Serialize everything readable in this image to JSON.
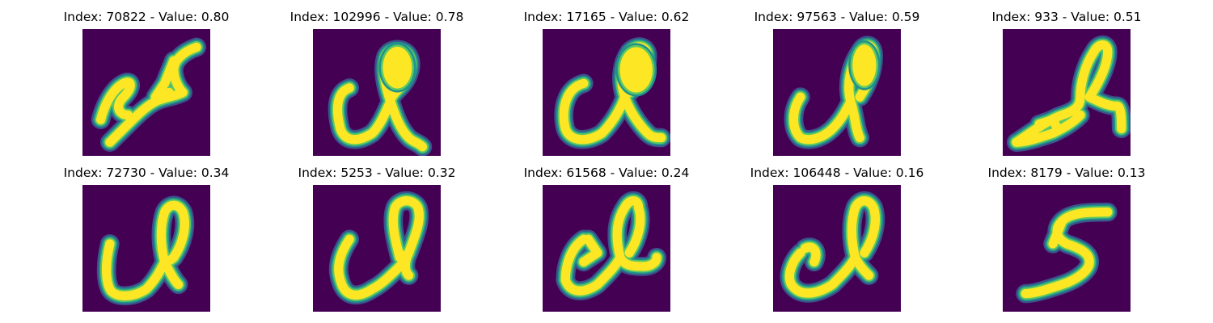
{
  "colors": {
    "background": "#440154",
    "ink_core": "#fde725",
    "ink_mid": "#5ec962",
    "ink_edge": "#21918c",
    "ink_faint": "#3b528b"
  },
  "panels": [
    {
      "title": "Index: 70822 - Value: 0.80",
      "index": 70822,
      "value": 0.8
    },
    {
      "title": "Index: 102996 - Value: 0.78",
      "index": 102996,
      "value": 0.78
    },
    {
      "title": "Index: 17165 - Value: 0.62",
      "index": 17165,
      "value": 0.62
    },
    {
      "title": "Index: 97563 - Value: 0.59",
      "index": 97563,
      "value": 0.59
    },
    {
      "title": "Index: 933 - Value: 0.51",
      "index": 933,
      "value": 0.51
    },
    {
      "title": "Index: 72730 - Value: 0.34",
      "index": 72730,
      "value": 0.34
    },
    {
      "title": "Index: 5253 - Value: 0.32",
      "index": 5253,
      "value": 0.32
    },
    {
      "title": "Index: 61568 - Value: 0.24",
      "index": 61568,
      "value": 0.24
    },
    {
      "title": "Index: 106448 - Value: 0.16",
      "index": 106448,
      "value": 0.16
    },
    {
      "title": "Index: 8179 - Value: 0.13",
      "index": 8179,
      "value": 0.13
    }
  ]
}
